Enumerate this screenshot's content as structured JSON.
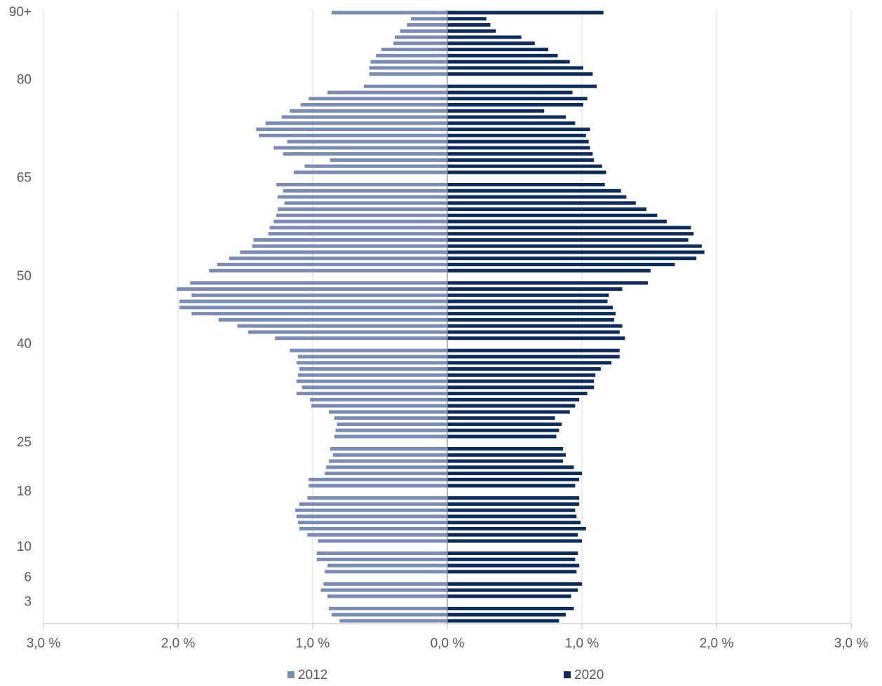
{
  "chart_data": {
    "type": "pyramid",
    "categories": [
      "90+",
      null,
      null,
      null,
      null,
      null,
      null,
      null,
      null,
      null,
      null,
      "80",
      null,
      null,
      null,
      null,
      null,
      null,
      null,
      null,
      null,
      null,
      null,
      null,
      null,
      null,
      null,
      "65",
      null,
      null,
      null,
      null,
      null,
      null,
      null,
      null,
      null,
      null,
      null,
      null,
      null,
      null,
      null,
      "50",
      null,
      null,
      null,
      null,
      null,
      null,
      null,
      null,
      null,
      null,
      "40",
      null,
      null,
      null,
      null,
      null,
      null,
      null,
      null,
      null,
      null,
      null,
      null,
      null,
      null,
      null,
      "25",
      null,
      null,
      null,
      null,
      null,
      null,
      null,
      "18",
      null,
      null,
      null,
      null,
      null,
      null,
      null,
      null,
      "10",
      null,
      null,
      null,
      null,
      "6",
      null,
      null,
      null,
      "3",
      null,
      null,
      null
    ],
    "series": [
      {
        "name": "2012",
        "color": "#7a8bb5",
        "values": [
          -0.86,
          -0.27,
          -0.3,
          -0.35,
          -0.39,
          -0.4,
          -0.49,
          -0.53,
          -0.57,
          -0.58,
          -0.58,
          null,
          -0.62,
          -0.89,
          -1.03,
          -1.09,
          -1.17,
          -1.23,
          -1.35,
          -1.42,
          -1.4,
          -1.19,
          -1.29,
          -1.22,
          -0.87,
          -1.06,
          -1.14,
          null,
          -1.27,
          -1.22,
          -1.26,
          -1.21,
          -1.26,
          -1.27,
          -1.29,
          -1.32,
          -1.33,
          -1.44,
          -1.45,
          -1.54,
          -1.62,
          -1.71,
          -1.77,
          null,
          -1.91,
          -2.01,
          -1.9,
          -1.99,
          -1.99,
          -1.9,
          -1.7,
          -1.56,
          -1.48,
          -1.28,
          null,
          -1.17,
          -1.11,
          -1.12,
          -1.1,
          -1.11,
          -1.12,
          -1.08,
          -1.12,
          -1.02,
          -1.01,
          -0.88,
          -0.84,
          -0.82,
          -0.83,
          -0.84,
          null,
          -0.87,
          -0.85,
          -0.88,
          -0.9,
          -0.91,
          -1.03,
          -1.03,
          null,
          -1.04,
          -1.1,
          -1.13,
          -1.12,
          -1.11,
          -1.1,
          -1.04,
          -0.96,
          null,
          -0.97,
          -0.97,
          -0.89,
          -0.91,
          null,
          -0.92,
          -0.94,
          -0.89,
          null,
          -0.88,
          -0.86,
          -0.8
        ]
      },
      {
        "name": "2020",
        "color": "#0d2c5e",
        "values": [
          1.16,
          0.29,
          0.32,
          0.36,
          0.55,
          0.65,
          0.75,
          0.82,
          0.91,
          1.01,
          1.08,
          null,
          1.11,
          0.93,
          1.04,
          1.01,
          0.72,
          0.88,
          0.95,
          1.06,
          1.03,
          1.05,
          1.06,
          1.08,
          1.09,
          1.15,
          1.18,
          null,
          1.17,
          1.29,
          1.33,
          1.4,
          1.48,
          1.56,
          1.63,
          1.81,
          1.83,
          1.79,
          1.89,
          1.91,
          1.85,
          1.69,
          1.51,
          null,
          1.49,
          1.3,
          1.2,
          1.19,
          1.23,
          1.25,
          1.24,
          1.3,
          1.28,
          1.32,
          null,
          1.28,
          1.28,
          1.22,
          1.14,
          1.1,
          1.09,
          1.09,
          1.04,
          0.98,
          0.95,
          0.91,
          0.8,
          0.85,
          0.83,
          0.81,
          null,
          0.86,
          0.88,
          0.86,
          0.94,
          1.0,
          0.98,
          0.95,
          null,
          0.98,
          0.98,
          0.95,
          0.96,
          0.99,
          1.03,
          0.97,
          1.0,
          null,
          0.97,
          0.95,
          0.98,
          0.96,
          null,
          1.0,
          0.97,
          0.92,
          null,
          0.94,
          0.88,
          0.83
        ]
      }
    ],
    "xlim": [
      -3,
      3
    ],
    "xticks": [
      {
        "value": -3,
        "label": "3,0 %"
      },
      {
        "value": -2,
        "label": "2,0 %"
      },
      {
        "value": -1,
        "label": "1,0 %"
      },
      {
        "value": 0,
        "label": "0,0 %"
      },
      {
        "value": 1,
        "label": "1,0 %"
      },
      {
        "value": 2,
        "label": "2,0 %"
      },
      {
        "value": 3,
        "label": "3,0 %"
      }
    ],
    "grid": true,
    "legend": "bottom"
  }
}
